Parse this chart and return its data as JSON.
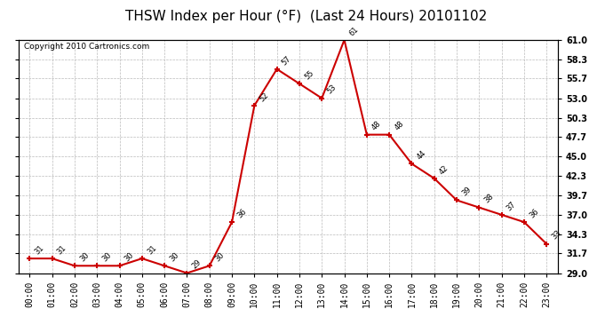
{
  "title": "THSW Index per Hour (°F)  (Last 24 Hours) 20101102",
  "copyright": "Copyright 2010 Cartronics.com",
  "hours": [
    "00:00",
    "01:00",
    "02:00",
    "03:00",
    "04:00",
    "05:00",
    "06:00",
    "07:00",
    "08:00",
    "09:00",
    "10:00",
    "11:00",
    "12:00",
    "13:00",
    "14:00",
    "15:00",
    "16:00",
    "17:00",
    "18:00",
    "19:00",
    "20:00",
    "21:00",
    "22:00",
    "23:00"
  ],
  "values": [
    31,
    31,
    30,
    30,
    30,
    31,
    30,
    29,
    30,
    36,
    52,
    57,
    55,
    53,
    61,
    48,
    48,
    44,
    42,
    39,
    38,
    37,
    36,
    33
  ],
  "line_color": "#cc0000",
  "marker_color": "#cc0000",
  "bg_color": "#ffffff",
  "grid_color": "#bbbbbb",
  "ylim_min": 29.0,
  "ylim_max": 61.0,
  "yticks": [
    29.0,
    31.7,
    34.3,
    37.0,
    39.7,
    42.3,
    45.0,
    47.7,
    50.3,
    53.0,
    55.7,
    58.3,
    61.0
  ],
  "ytick_labels": [
    "29.0",
    "31.7",
    "34.3",
    "37.0",
    "39.7",
    "42.3",
    "45.0",
    "47.7",
    "50.3",
    "53.0",
    "55.7",
    "58.3",
    "61.0"
  ],
  "title_fontsize": 11,
  "label_fontsize": 7,
  "copyright_fontsize": 6.5
}
